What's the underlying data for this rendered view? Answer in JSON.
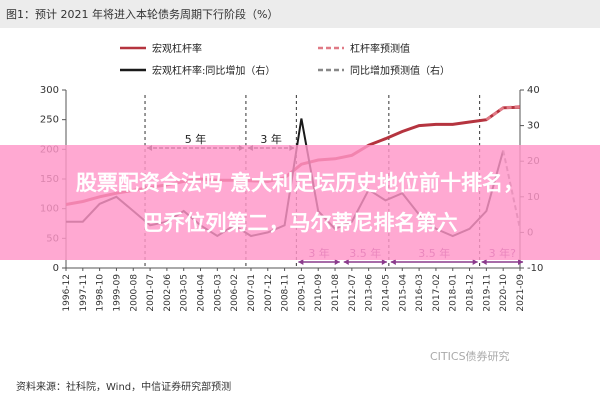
{
  "figure_title": "图1：预计 2021 年将进入本轮债务周期下行阶段（%）",
  "source": "资料来源：社科院，Wind，中信证券研究部预测",
  "watermark": "CITICS债券研究",
  "overlay": {
    "line1": "股票配资合法吗 意大利足坛历史地位前十排名，",
    "line2": "巴乔位列第二，马尔蒂尼排名第六"
  },
  "chart_data": {
    "type": "line",
    "x": [
      "1996-12",
      "1997-11",
      "1998-10",
      "1999-09",
      "2000-08",
      "2001-07",
      "2002-06",
      "2003-05",
      "2004-04",
      "2005-03",
      "2006-02",
      "2007-01",
      "2007-12",
      "2008-11",
      "2009-10",
      "2010-09",
      "2011-08",
      "2012-07",
      "2013-06",
      "2014-05",
      "2015-04",
      "2016-03",
      "2017-02",
      "2018-01",
      "2018-12",
      "2019-11",
      "2020-10",
      "2021-09"
    ],
    "y_left": {
      "ticks": [
        0,
        50,
        100,
        150,
        200,
        250,
        300
      ],
      "ylim": [
        0,
        300
      ]
    },
    "y_right": {
      "ticks": [
        -10,
        0,
        10,
        20,
        30,
        40
      ],
      "ylim": [
        -10,
        40
      ]
    },
    "series": [
      {
        "name": "宏观杠杆率",
        "axis": "left",
        "color": "#b5343f",
        "style": "solid",
        "values": [
          107,
          112,
          120,
          126,
          131,
          136,
          140,
          146,
          150,
          148,
          148,
          147,
          146,
          152,
          175,
          182,
          184,
          190,
          207,
          218,
          230,
          240,
          242,
          242,
          246,
          250,
          270,
          271
        ]
      },
      {
        "name": "杠杆率预测值",
        "axis": "left",
        "color": "#e07a86",
        "style": "dashed",
        "values": [
          null,
          null,
          null,
          null,
          null,
          null,
          null,
          null,
          null,
          null,
          null,
          null,
          null,
          null,
          null,
          null,
          null,
          null,
          null,
          null,
          null,
          null,
          null,
          null,
          null,
          250,
          270,
          272
        ]
      },
      {
        "name": "宏观杠杆率:同比增加（右）",
        "axis": "right",
        "color": "#1a1a1a",
        "style": "solid",
        "values": [
          3,
          3,
          8,
          10,
          6,
          2,
          3,
          6,
          2,
          -1,
          2,
          -1,
          0,
          2,
          32,
          6,
          1,
          3,
          12,
          9,
          11,
          5,
          1,
          -1,
          1,
          6,
          23,
          null
        ]
      },
      {
        "name": "同比增加预测值（右）",
        "axis": "right",
        "color": "#888888",
        "style": "dashed",
        "values": [
          null,
          null,
          null,
          null,
          null,
          null,
          null,
          null,
          null,
          null,
          null,
          null,
          null,
          null,
          null,
          null,
          null,
          null,
          null,
          null,
          null,
          null,
          null,
          null,
          null,
          null,
          23,
          1
        ]
      }
    ],
    "annotations": [
      "5 年",
      "3 年",
      "3 年",
      "3.5 年",
      "3.5 年",
      "3 年?"
    ],
    "grid": false,
    "legend_position": "top"
  }
}
